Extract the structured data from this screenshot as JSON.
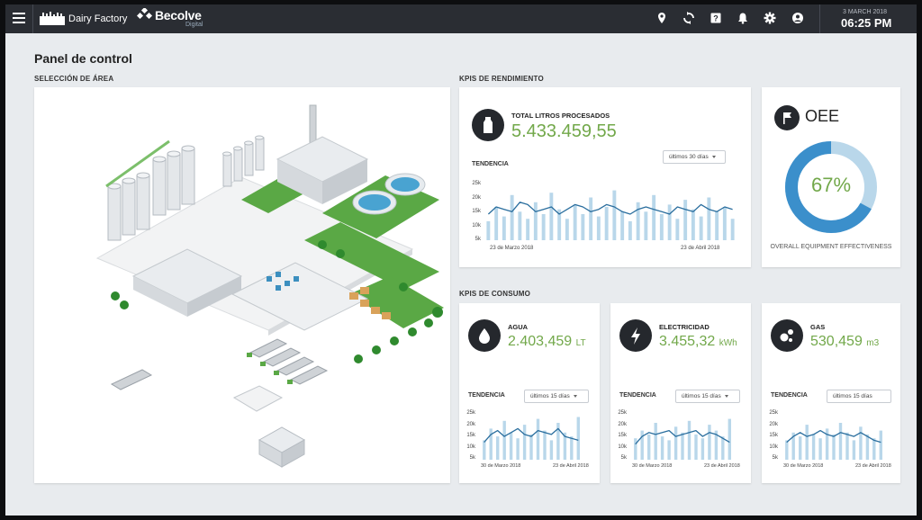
{
  "header": {
    "brand": "Dairy Factory",
    "company": "Becolve",
    "company_sub": "Digital",
    "date": "3 MARCH 2018",
    "time": "06:25 PM",
    "icons": [
      "menu-icon",
      "location-icon",
      "sync-icon",
      "help-icon",
      "bell-icon",
      "gear-icon",
      "user-icon"
    ]
  },
  "page": {
    "title": "Panel de control",
    "area_label": "SELECCIÓN DE ÁREA",
    "rendimiento_label": "KPIS DE RENDIMIENTO",
    "consumo_label": "KPIS DE CONSUMO"
  },
  "total": {
    "title": "TOTAL LITROS PROCESADOS",
    "value": "5.433.459,55",
    "trend_label": "TENDENCIA",
    "range": "últimos 30 días",
    "y_ticks": [
      "25k",
      "20k",
      "15k",
      "10k",
      "5k"
    ],
    "x_start": "23 de Marzo 2018",
    "x_end": "23 de Abril 2018"
  },
  "oee": {
    "title": "OEE",
    "value_text": "67%",
    "value": 67,
    "subtitle": "OVERALL EQUIPMENT EFFECTIVENESS"
  },
  "consumo": [
    {
      "title": "AGUA",
      "value": "2.403,459",
      "unit": "LT",
      "trend_label": "TENDENCIA",
      "range": "últimos 15 días",
      "y_ticks": [
        "25k",
        "20k",
        "15k",
        "10k",
        "5k"
      ],
      "x_start": "30 de Marzo 2018",
      "x_end": "23 de Abril 2018"
    },
    {
      "title": "ELECTRICIDAD",
      "value": "3.455,32",
      "unit": "kWh",
      "trend_label": "TENDENCIA",
      "range": "últimos 15 días",
      "y_ticks": [
        "25k",
        "20k",
        "15k",
        "10k",
        "5k"
      ],
      "x_start": "30 de Marzo 2018",
      "x_end": "23 de Abril 2018"
    },
    {
      "title": "GAS",
      "value": "530,459",
      "unit": "m3",
      "trend_label": "TENDENCIA",
      "range": "últimos 15 días",
      "y_ticks": [
        "25k",
        "20k",
        "15k",
        "10k",
        "5k"
      ],
      "x_start": "30 de Marzo 2018",
      "x_end": "23 de Abril 2018"
    }
  ],
  "colors": {
    "accent_green": "#72a84a",
    "bar_blue": "#b9d7ea",
    "line_blue": "#2a6e9e",
    "oee_blue": "#3b8fcb",
    "oee_light": "#b9d7ea"
  },
  "chart_data": [
    {
      "type": "bar",
      "name_ref": "total",
      "values": [
        8,
        14,
        10,
        19,
        12,
        9,
        16,
        11,
        20,
        13,
        9,
        15,
        11,
        18,
        10,
        14,
        21,
        12,
        8,
        16,
        12,
        19,
        11,
        15,
        9,
        17,
        13,
        10,
        18,
        12,
        14,
        9
      ],
      "line": [
        11,
        14,
        13,
        12,
        16,
        15,
        12,
        13,
        14,
        11,
        13,
        15,
        14,
        12,
        13,
        15,
        14,
        12,
        11,
        13,
        14,
        13,
        12,
        11,
        14,
        13,
        12,
        15,
        13,
        12,
        14,
        13
      ],
      "ylim": [
        0,
        25
      ]
    },
    {
      "type": "bar",
      "name_ref": "agua",
      "values": [
        10,
        16,
        12,
        20,
        14,
        11,
        18,
        13,
        21,
        15,
        10,
        19,
        14,
        12,
        22
      ],
      "line": [
        9,
        13,
        15,
        12,
        14,
        16,
        13,
        12,
        15,
        14,
        13,
        16,
        12,
        11,
        10
      ],
      "ylim": [
        0,
        25
      ]
    },
    {
      "type": "bar",
      "name_ref": "electricidad",
      "values": [
        11,
        15,
        13,
        19,
        12,
        10,
        17,
        14,
        20,
        13,
        11,
        18,
        15,
        12,
        21
      ],
      "line": [
        8,
        12,
        14,
        13,
        14,
        15,
        12,
        13,
        14,
        15,
        12,
        14,
        13,
        11,
        9
      ],
      "ylim": [
        0,
        25
      ]
    },
    {
      "type": "bar",
      "name_ref": "gas",
      "values": [
        10,
        14,
        12,
        18,
        13,
        11,
        16,
        13,
        19,
        14,
        10,
        17,
        13,
        11,
        15
      ],
      "line": [
        9,
        12,
        14,
        12,
        13,
        15,
        13,
        12,
        14,
        13,
        12,
        14,
        12,
        10,
        9
      ],
      "ylim": [
        0,
        25
      ]
    }
  ]
}
